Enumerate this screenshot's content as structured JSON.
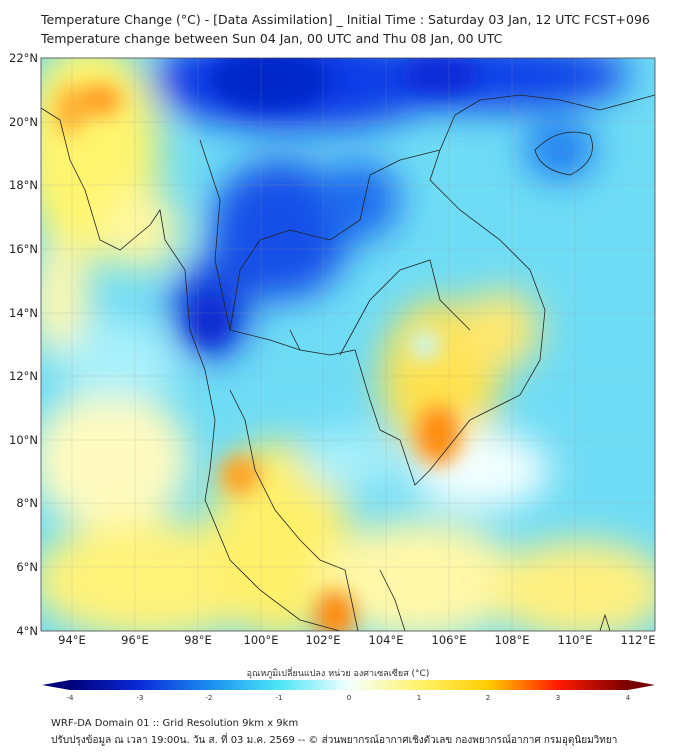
{
  "header": {
    "title": "Temperature Change (°C) - [Data Assimilation] _ Initial Time : Saturday 03 Jan, 12 UTC FCST+096",
    "subtitle": "Temperature change between Sun 04 Jan, 00 UTC and Thu 08 Jan, 00 UTC"
  },
  "map": {
    "lat_labels": [
      "22°N",
      "20°N",
      "18°N",
      "16°N",
      "14°N",
      "12°N",
      "10°N",
      "8°N",
      "6°N",
      "4°N"
    ],
    "lon_labels": [
      "94°E",
      "96°E",
      "98°E",
      "100°E",
      "102°E",
      "104°E",
      "106°E",
      "108°E",
      "110°E",
      "112°E"
    ],
    "lat_range": [
      4,
      22
    ],
    "lon_range": [
      93,
      112.5
    ]
  },
  "colorbar": {
    "label": "อุณหภูมิเปลี่ยนแปลง หน่วย องศาเซลเซียส (°C)",
    "ticks": [
      "-4",
      "-3",
      "-2",
      "-1",
      "0",
      "1",
      "2",
      "3",
      "4"
    ],
    "colors": [
      "#00007a",
      "#0a2ad8",
      "#1a8ef0",
      "#4ce6f6",
      "#f4ffff",
      "#fff46a",
      "#ffcc00",
      "#ff1a00",
      "#780000"
    ]
  },
  "footer": {
    "line1": "WRF-DA Domain 01 :: Grid Resolution 9km x 9km",
    "line2": "ปรับปรุงข้อมูล ณ เวลา 19:00น. วัน ส. ที่ 03 ม.ค. 2569 -- © ส่วนพยากรณ์อากาศเชิงตัวเลข กองพยากรณ์อากาศ กรมอุตุนิยมวิทยา"
  }
}
